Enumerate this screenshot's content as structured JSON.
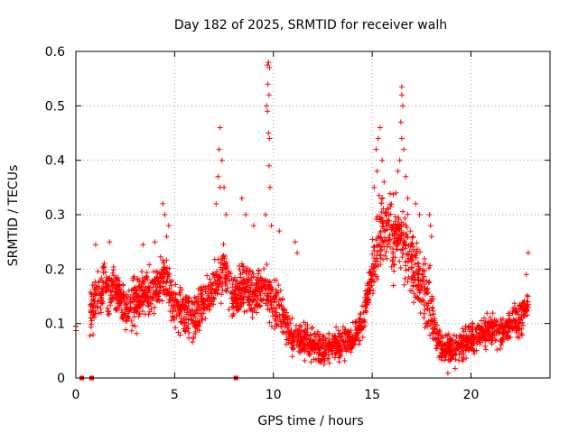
{
  "chart_data": {
    "type": "scatter",
    "title": "Day 182 of 2025, SRMTID for receiver walh",
    "xlabel": "GPS time / hours",
    "ylabel": "SRMTID / TECUs",
    "xlim": [
      0,
      24
    ],
    "ylim": [
      0,
      0.6
    ],
    "xticks": [
      0,
      5,
      10,
      15,
      20
    ],
    "yticks": [
      0,
      0.1,
      0.2,
      0.3,
      0.4,
      0.5,
      0.6
    ],
    "xtick_labels": [
      "0",
      "5",
      "10",
      "15",
      "20"
    ],
    "ytick_labels": [
      "0",
      "0.1",
      "0.2",
      "0.3",
      "0.4",
      "0.5",
      "0.6"
    ],
    "grid": true,
    "marker": "+",
    "series_color": "#ff0000",
    "trend": {
      "x": [
        0,
        0.5,
        1,
        1.5,
        2,
        2.5,
        3,
        3.5,
        4,
        4.5,
        5,
        5.5,
        6,
        6.5,
        7,
        7.5,
        8,
        8.5,
        9,
        9.5,
        10,
        10.5,
        11,
        11.5,
        12,
        12.5,
        13,
        13.5,
        14,
        14.5,
        15,
        15.5,
        16,
        16.5,
        17,
        17.5,
        18,
        18.5,
        19,
        19.5,
        20,
        20.5,
        21,
        21.5,
        22,
        22.5,
        22.9
      ],
      "y": [
        0.09,
        0.1,
        0.15,
        0.17,
        0.16,
        0.13,
        0.14,
        0.15,
        0.16,
        0.19,
        0.13,
        0.12,
        0.11,
        0.14,
        0.16,
        0.2,
        0.14,
        0.17,
        0.16,
        0.17,
        0.14,
        0.11,
        0.07,
        0.07,
        0.06,
        0.05,
        0.06,
        0.06,
        0.07,
        0.1,
        0.2,
        0.28,
        0.26,
        0.26,
        0.22,
        0.17,
        0.12,
        0.05,
        0.05,
        0.06,
        0.07,
        0.08,
        0.09,
        0.09,
        0.1,
        0.11,
        0.13
      ]
    },
    "spikes": [
      {
        "x": 0.0,
        "y": 0.087
      },
      {
        "x": 0.0,
        "y": 0.095
      },
      {
        "x": 1.0,
        "y": 0.245
      },
      {
        "x": 1.7,
        "y": 0.25
      },
      {
        "x": 3.4,
        "y": 0.245
      },
      {
        "x": 4.0,
        "y": 0.25
      },
      {
        "x": 4.4,
        "y": 0.32
      },
      {
        "x": 4.5,
        "y": 0.3
      },
      {
        "x": 4.7,
        "y": 0.28
      },
      {
        "x": 4.6,
        "y": 0.26
      },
      {
        "x": 7.3,
        "y": 0.46
      },
      {
        "x": 7.25,
        "y": 0.42
      },
      {
        "x": 7.4,
        "y": 0.4
      },
      {
        "x": 7.2,
        "y": 0.37
      },
      {
        "x": 7.1,
        "y": 0.32
      },
      {
        "x": 7.5,
        "y": 0.35
      },
      {
        "x": 7.6,
        "y": 0.3
      },
      {
        "x": 7.3,
        "y": 0.35
      },
      {
        "x": 8.4,
        "y": 0.33
      },
      {
        "x": 8.6,
        "y": 0.3
      },
      {
        "x": 9.0,
        "y": 0.28
      },
      {
        "x": 9.75,
        "y": 0.58
      },
      {
        "x": 9.7,
        "y": 0.575
      },
      {
        "x": 9.8,
        "y": 0.57
      },
      {
        "x": 9.72,
        "y": 0.54
      },
      {
        "x": 9.78,
        "y": 0.52
      },
      {
        "x": 9.65,
        "y": 0.5
      },
      {
        "x": 9.7,
        "y": 0.49
      },
      {
        "x": 9.75,
        "y": 0.45
      },
      {
        "x": 9.8,
        "y": 0.44
      },
      {
        "x": 9.78,
        "y": 0.39
      },
      {
        "x": 9.83,
        "y": 0.35
      },
      {
        "x": 9.9,
        "y": 0.28
      },
      {
        "x": 9.6,
        "y": 0.3
      },
      {
        "x": 10.3,
        "y": 0.27
      },
      {
        "x": 11.1,
        "y": 0.25
      },
      {
        "x": 11.2,
        "y": 0.23
      },
      {
        "x": 15.3,
        "y": 0.44
      },
      {
        "x": 15.4,
        "y": 0.46
      },
      {
        "x": 15.2,
        "y": 0.42
      },
      {
        "x": 15.5,
        "y": 0.4
      },
      {
        "x": 15.25,
        "y": 0.38
      },
      {
        "x": 15.1,
        "y": 0.35
      },
      {
        "x": 15.6,
        "y": 0.36
      },
      {
        "x": 16.5,
        "y": 0.535
      },
      {
        "x": 16.5,
        "y": 0.52
      },
      {
        "x": 16.55,
        "y": 0.5
      },
      {
        "x": 16.45,
        "y": 0.47
      },
      {
        "x": 16.5,
        "y": 0.44
      },
      {
        "x": 16.6,
        "y": 0.42
      },
      {
        "x": 16.4,
        "y": 0.4
      },
      {
        "x": 16.3,
        "y": 0.38
      },
      {
        "x": 16.7,
        "y": 0.37
      },
      {
        "x": 16.2,
        "y": 0.34
      },
      {
        "x": 16.8,
        "y": 0.33
      },
      {
        "x": 17.2,
        "y": 0.32
      },
      {
        "x": 17.4,
        "y": 0.3
      },
      {
        "x": 17.9,
        "y": 0.3
      },
      {
        "x": 17.95,
        "y": 0.28
      },
      {
        "x": 18.0,
        "y": 0.26
      },
      {
        "x": 22.9,
        "y": 0.23
      },
      {
        "x": 22.8,
        "y": 0.19
      }
    ],
    "squares": [
      {
        "x": 0.3,
        "y": 0.0
      },
      {
        "x": 0.8,
        "y": 0.0
      },
      {
        "x": 8.1,
        "y": 0.0
      }
    ]
  }
}
